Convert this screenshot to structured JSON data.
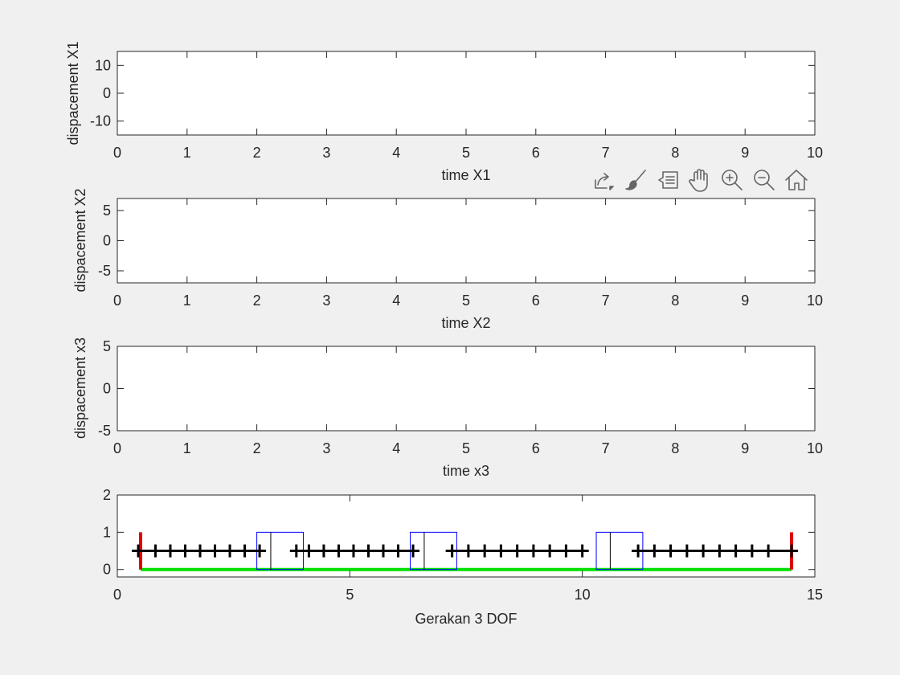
{
  "toolbar": [
    {
      "icon": "export-icon",
      "label": "Export"
    },
    {
      "icon": "brush-icon",
      "label": "Brush"
    },
    {
      "icon": "datatip-icon",
      "label": "Data Tips"
    },
    {
      "icon": "pan-icon",
      "label": "Pan"
    },
    {
      "icon": "zoom-in-icon",
      "label": "Zoom In"
    },
    {
      "icon": "zoom-out-icon",
      "label": "Zoom Out"
    },
    {
      "icon": "home-icon",
      "label": "Restore View"
    }
  ],
  "chart_data": [
    {
      "type": "line",
      "title": "",
      "xlabel": "time X1",
      "ylabel": "dispacement X1",
      "xlim": [
        0,
        10
      ],
      "ylim": [
        -15,
        15
      ],
      "xticks": [
        "0",
        "1",
        "2",
        "3",
        "4",
        "5",
        "6",
        "7",
        "8",
        "9",
        "10"
      ],
      "yticks": [
        "-10",
        "0",
        "10"
      ],
      "ytick_values": [
        -10,
        0,
        10
      ],
      "series": []
    },
    {
      "type": "line",
      "title": "",
      "xlabel": "time X2",
      "ylabel": "dispacement X2",
      "xlim": [
        0,
        10
      ],
      "ylim": [
        -7,
        7
      ],
      "xticks": [
        "0",
        "1",
        "2",
        "3",
        "4",
        "5",
        "6",
        "7",
        "8",
        "9",
        "10"
      ],
      "yticks": [
        "-5",
        "0",
        "5"
      ],
      "ytick_values": [
        -5,
        0,
        5
      ],
      "series": []
    },
    {
      "type": "line",
      "title": "",
      "xlabel": "time x3",
      "ylabel": "dispacement x3",
      "xlim": [
        0,
        10
      ],
      "ylim": [
        -5,
        5
      ],
      "xticks": [
        "0",
        "1",
        "2",
        "3",
        "4",
        "5",
        "6",
        "7",
        "8",
        "9",
        "10"
      ],
      "yticks": [
        "-5",
        "0",
        "5"
      ],
      "ytick_values": [
        -5,
        0,
        5
      ],
      "series": []
    },
    {
      "type": "line",
      "title": "",
      "xlabel": "Gerakan 3 DOF",
      "ylabel": "",
      "xlim": [
        0,
        15
      ],
      "ylim": [
        -0.2,
        2
      ],
      "xticks": [
        "0",
        "5",
        "10",
        "15"
      ],
      "xtick_values": [
        0,
        5,
        10,
        15
      ],
      "yticks": [
        "0",
        "1",
        "2"
      ],
      "ytick_values": [
        0,
        1,
        2
      ],
      "ground": {
        "name": "ground",
        "color": "#00e000",
        "x": [
          0.5,
          14.5
        ],
        "y": [
          0,
          0
        ]
      },
      "walls": [
        {
          "name": "left-wall",
          "color": "#e00000",
          "x": 0.5,
          "y": [
            0,
            1
          ]
        },
        {
          "name": "right-wall",
          "color": "#e00000",
          "x": 14.5,
          "y": [
            0,
            1
          ]
        }
      ],
      "masses": [
        {
          "name": "mass-1",
          "color": "#0000ff",
          "x0": 3.0,
          "x1": 4.0,
          "y0": 0,
          "y1": 1,
          "center_x": 3.3
        },
        {
          "name": "mass-2",
          "color": "#0000ff",
          "x0": 6.3,
          "x1": 7.3,
          "y0": 0,
          "y1": 1,
          "center_x": 6.6
        },
        {
          "name": "mass-3",
          "color": "#0000ff",
          "x0": 10.3,
          "x1": 11.3,
          "y0": 0,
          "y1": 1,
          "center_x": 10.6
        }
      ],
      "springs": [
        {
          "name": "spring-1",
          "color": "#000000",
          "x": [
            0.45,
            0.82,
            1.14,
            1.46,
            1.78,
            2.1,
            2.42,
            2.74,
            3.06
          ],
          "y": 0.5
        },
        {
          "name": "spring-2",
          "color": "#000000",
          "x": [
            3.85,
            4.12,
            4.44,
            4.76,
            5.08,
            5.4,
            5.72,
            6.04,
            6.36
          ],
          "y": 0.5
        },
        {
          "name": "spring-3",
          "color": "#000000",
          "x": [
            7.2,
            7.55,
            7.9,
            8.25,
            8.6,
            8.95,
            9.3,
            9.65,
            10.0
          ],
          "y": 0.5
        },
        {
          "name": "spring-4",
          "color": "#000000",
          "x": [
            11.2,
            11.55,
            11.9,
            12.25,
            12.6,
            12.95,
            13.3,
            13.65,
            14.0,
            14.5
          ],
          "y": 0.5
        }
      ]
    }
  ]
}
